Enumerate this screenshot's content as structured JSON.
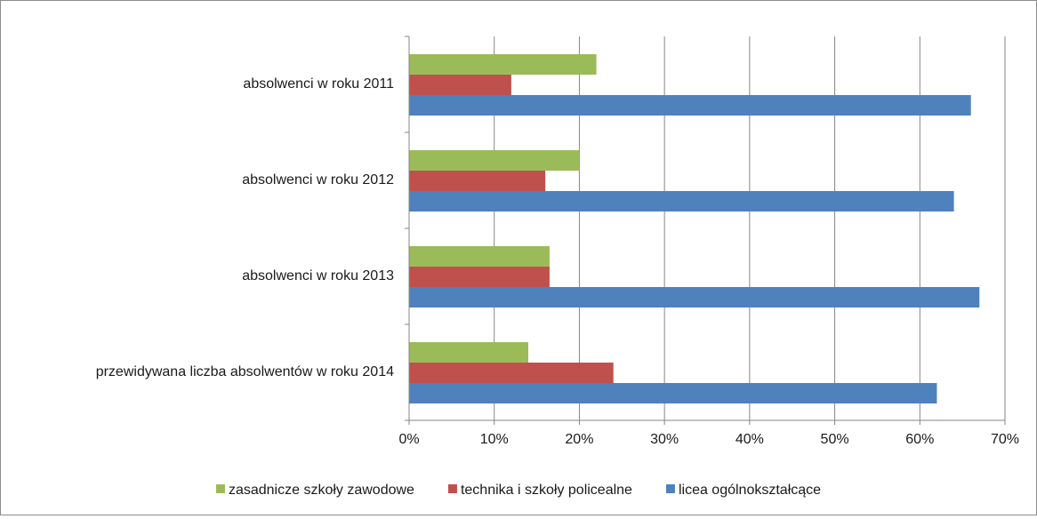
{
  "chart_data": {
    "type": "bar",
    "orientation": "horizontal",
    "categories": [
      "absolwenci w roku 2011",
      "absolwenci w roku 2012",
      "absolwenci w roku 2013",
      "przewidywana liczba absolwentów w roku 2014"
    ],
    "series": [
      {
        "name": "zasadnicze szkoły zawodowe",
        "color": "#9bbb59",
        "values": [
          22,
          20,
          16.5,
          14
        ]
      },
      {
        "name": "technika i szkoły policealne",
        "color": "#c0504d",
        "values": [
          12,
          16,
          16.5,
          24
        ]
      },
      {
        "name": "licea ogólnokształcące",
        "color": "#4f81bd",
        "values": [
          66,
          64,
          67,
          62
        ]
      }
    ],
    "xlim": [
      0,
      70
    ],
    "x_ticks": [
      0,
      10,
      20,
      30,
      40,
      50,
      60,
      70
    ],
    "tick_suffix": "%",
    "grid": "vertical",
    "legend_position": "bottom",
    "title": "",
    "xlabel": "",
    "ylabel": ""
  }
}
